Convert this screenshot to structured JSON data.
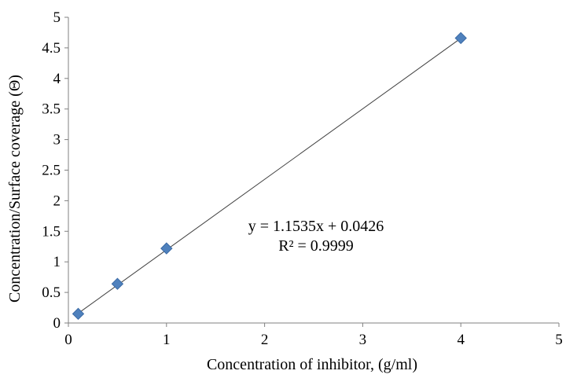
{
  "chart_data": {
    "type": "scatter",
    "title": "",
    "xlabel": "Concentration of inhibitor, (g/ml)",
    "ylabel": "Concentration/Surface coverage (Θ)",
    "xlim": [
      0,
      5
    ],
    "ylim": [
      0,
      5
    ],
    "xticks": [
      "0",
      "1",
      "2",
      "3",
      "4",
      "5"
    ],
    "yticks": [
      "0",
      "0.5",
      "1",
      "1.5",
      "2",
      "2.5",
      "3",
      "3.5",
      "4",
      "4.5",
      "5"
    ],
    "grid": false,
    "legend": "none",
    "series": [
      {
        "marker": "diamond",
        "color": "#4F81BD",
        "points": [
          {
            "x": 0.1,
            "y": 0.15
          },
          {
            "x": 0.5,
            "y": 0.64
          },
          {
            "x": 1.0,
            "y": 1.22
          },
          {
            "x": 4.0,
            "y": 4.66
          }
        ]
      }
    ],
    "trendline": {
      "slope": 1.1535,
      "intercept": 0.0426,
      "x_range": [
        0.1,
        4.0
      ],
      "color": "#404040"
    },
    "annotations": {
      "equation": "y = 1.1535x + 0.0426",
      "r_squared": "R² = 0.9999"
    }
  }
}
